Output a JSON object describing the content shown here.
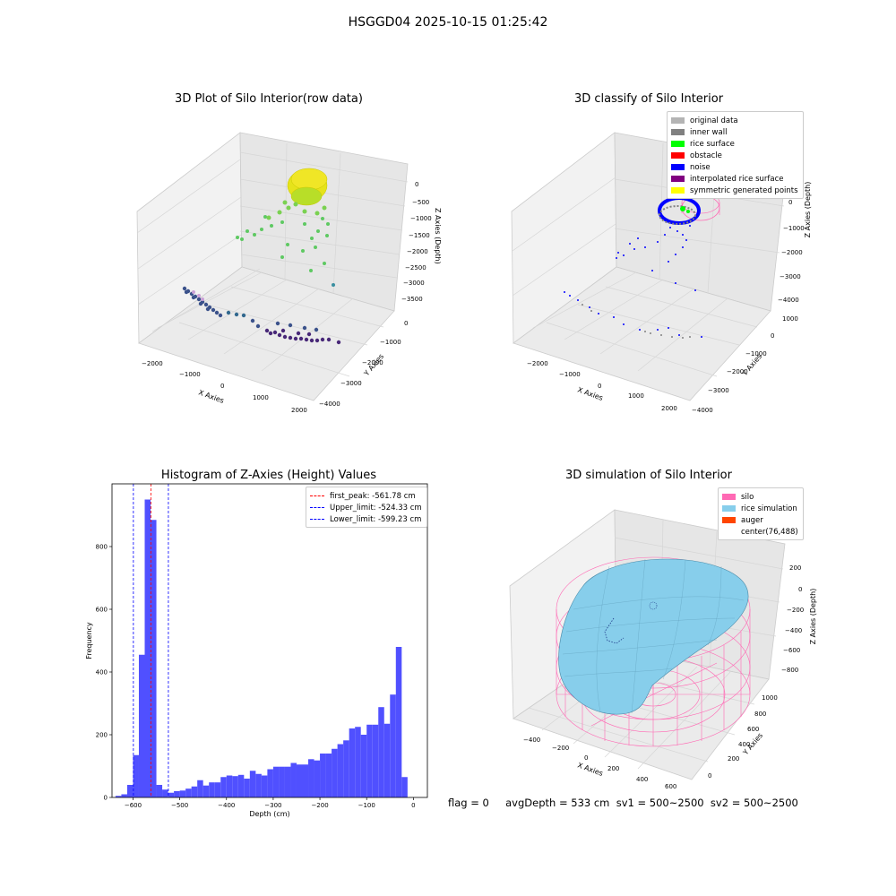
{
  "suptitle": "HSGGD04 2025-10-15 01:25:42",
  "footer": "flag = 0     avgDepth = 533 cm  sv1 = 500~2500  sv2 = 500~2500",
  "colors": {
    "hist_bar": "#5050ff",
    "first_peak_line": "#ff0000",
    "limit_line": "#0000ff",
    "silo_wire": "#ff69b4",
    "rice_surface": "#87ceeb"
  },
  "plot1": {
    "title": "3D Plot of Silo Interior(row data)",
    "xlabel": "X Axies",
    "ylabel": "Y Axies",
    "zlabel": "Z Axies (Depth)",
    "xticks": [
      "−2000",
      "−1000",
      "0",
      "1000",
      "2000"
    ],
    "yticks": [
      "0",
      "−1000",
      "−2000",
      "−3000",
      "−4000"
    ],
    "zticks": [
      "0",
      "−500",
      "−1000",
      "−1500",
      "−2000",
      "−2500",
      "−3000",
      "−3500"
    ]
  },
  "plot2": {
    "title": "3D classify of Silo Interior",
    "xlabel": "X Axies",
    "ylabel": "Y Axies",
    "zlabel": "Z Axies (Depth)",
    "xticks": [
      "−2000",
      "−1000",
      "0",
      "1000",
      "2000"
    ],
    "yticks": [
      "1000",
      "0",
      "−1000",
      "−2000",
      "−3000",
      "−4000"
    ],
    "zticks": [
      "0",
      "−1000",
      "−2000",
      "−3000",
      "−4000"
    ],
    "legend": [
      {
        "label": "original data",
        "color": "#b4b4b4"
      },
      {
        "label": "inner wall",
        "color": "#808080"
      },
      {
        "label": "rice surface",
        "color": "#00ff00"
      },
      {
        "label": "obstacle",
        "color": "#ff0000"
      },
      {
        "label": "noise",
        "color": "#0000ff"
      },
      {
        "label": "interpolated rice surface",
        "color": "#800080"
      },
      {
        "label": "symmetric generated points",
        "color": "#ffff00"
      }
    ]
  },
  "plot4": {
    "title": "3D simulation of Silo Interior",
    "xlabel": "X Axies",
    "ylabel": "Y Axies",
    "zlabel": "Z Axies (Depth)",
    "xticks": [
      "−400",
      "−200",
      "0",
      "200",
      "400",
      "600"
    ],
    "yticks": [
      "0",
      "200",
      "400",
      "600",
      "800",
      "1000"
    ],
    "zticks": [
      "200",
      "0",
      "−200",
      "−400",
      "−600",
      "−800"
    ],
    "legend": [
      {
        "label": "silo",
        "color": "#ff69b4"
      },
      {
        "label": "rice simulation",
        "color": "#87ceeb"
      },
      {
        "label": "auger",
        "color": "#ff4500"
      },
      {
        "label": "center(76,488)",
        "color": ""
      }
    ]
  },
  "chart_data": [
    {
      "type": "scatter",
      "title": "3D Plot of Silo Interior(row data)",
      "xlabel": "X Axies",
      "ylabel": "Y Axies",
      "zlabel": "Z Axies (Depth)",
      "xlim": [
        -2500,
        2000
      ],
      "ylim": [
        -4000,
        500
      ],
      "zlim": [
        -3800,
        200
      ]
    },
    {
      "type": "scatter",
      "title": "3D classify of Silo Interior",
      "xlabel": "X Axies",
      "ylabel": "Y Axies",
      "zlabel": "Z Axies (Depth)",
      "xlim": [
        -2500,
        2000
      ],
      "ylim": [
        -4000,
        1000
      ],
      "zlim": [
        -4300,
        200
      ],
      "series": [
        {
          "name": "original data"
        },
        {
          "name": "inner wall"
        },
        {
          "name": "rice surface"
        },
        {
          "name": "obstacle"
        },
        {
          "name": "noise"
        },
        {
          "name": "interpolated rice surface"
        },
        {
          "name": "symmetric generated points"
        }
      ]
    },
    {
      "type": "bar",
      "title": "Histogram of Z-Axies (Height) Values",
      "xlabel": "Depth (cm)",
      "ylabel": "Frequency",
      "xlim": [
        -645,
        30
      ],
      "ylim": [
        0,
        1000
      ],
      "xticks": [
        -600,
        -500,
        -400,
        -300,
        -200,
        -100,
        0
      ],
      "yticks": [
        0,
        200,
        400,
        600,
        800
      ],
      "bin_width": 12.5,
      "bin_start": -637.5,
      "values": [
        5,
        10,
        40,
        135,
        455,
        950,
        885,
        40,
        25,
        15,
        20,
        22,
        28,
        35,
        55,
        38,
        48,
        48,
        65,
        70,
        68,
        72,
        60,
        85,
        75,
        70,
        90,
        98,
        98,
        98,
        110,
        105,
        105,
        122,
        118,
        140,
        140,
        155,
        170,
        182,
        220,
        225,
        200,
        232,
        232,
        288,
        235,
        328,
        480,
        65
      ],
      "vlines": [
        {
          "label": "first_peak: -561.78 cm",
          "x": -561.78,
          "color": "#ff0000"
        },
        {
          "label": "Upper_limit: -524.33 cm",
          "x": -524.33,
          "color": "#0000ff"
        },
        {
          "label": "Lower_limit: -599.23 cm",
          "x": -599.23,
          "color": "#0000ff"
        }
      ]
    },
    {
      "type": "area",
      "title": "3D simulation of Silo Interior",
      "xlabel": "X Axies",
      "ylabel": "Y Axies",
      "zlabel": "Z Axies (Depth)",
      "xlim": [
        -500,
        700
      ],
      "ylim": [
        -100,
        1100
      ],
      "zlim": [
        -900,
        300
      ],
      "series": [
        {
          "name": "silo"
        },
        {
          "name": "rice simulation"
        },
        {
          "name": "auger"
        }
      ],
      "annotation": "center(76,488)"
    }
  ]
}
